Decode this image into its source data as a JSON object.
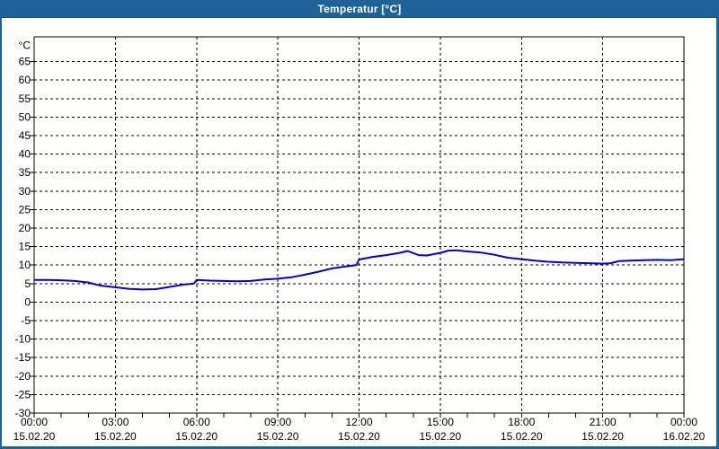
{
  "window": {
    "title": "Temperatur [°C]",
    "colors": {
      "titlebar": "#1f6396",
      "frame": "#1f6396",
      "background": "#fffffb",
      "grid": "#000000",
      "axis": "#000000",
      "line": "#0000cc",
      "title_text": "#ffffff",
      "label_text": "#000000"
    }
  },
  "chart_data": {
    "type": "line",
    "title": "Temperatur [°C]",
    "ylabel": "°C",
    "xlabel": "",
    "legend": "none",
    "grid": "dashed",
    "xlim_hours": [
      0,
      24
    ],
    "ylim": [
      -30,
      71.7
    ],
    "y_ticks": [
      65,
      60,
      55,
      50,
      45,
      40,
      35,
      30,
      25,
      20,
      15,
      10,
      5,
      0,
      -5,
      -10,
      -15,
      -20,
      -25,
      -30
    ],
    "x_grid_hours": [
      3,
      6,
      9,
      12,
      15,
      18,
      21
    ],
    "x_minor_tick_every_hours": 1,
    "x_major_ticks": [
      {
        "hour": 0,
        "time": "00:00",
        "date": "15.02.20"
      },
      {
        "hour": 3,
        "time": "03:00",
        "date": "15.02.20"
      },
      {
        "hour": 6,
        "time": "06:00",
        "date": "15.02.20"
      },
      {
        "hour": 9,
        "time": "09:00",
        "date": "15.02.20"
      },
      {
        "hour": 12,
        "time": "12:00",
        "date": "15.02.20"
      },
      {
        "hour": 15,
        "time": "15:00",
        "date": "15.02.20"
      },
      {
        "hour": 18,
        "time": "18:00",
        "date": "15.02.20"
      },
      {
        "hour": 21,
        "time": "21:00",
        "date": "15.02.20"
      },
      {
        "hour": 24,
        "time": "00:00",
        "date": "16.02.20"
      }
    ],
    "series": [
      {
        "name": "Temperatur",
        "unit": "°C",
        "x": [
          0,
          0.5,
          1,
          1.5,
          2,
          2.25,
          2.5,
          3,
          3.5,
          4,
          4.5,
          5,
          5.5,
          5.9,
          6,
          6.5,
          7,
          7.5,
          8,
          8.5,
          9,
          9.5,
          10,
          10.5,
          11,
          11.5,
          11.9,
          12,
          12.5,
          13,
          13.5,
          13.8,
          14.2,
          14.5,
          15,
          15.3,
          15.6,
          16,
          16.5,
          17,
          17.5,
          18,
          18.5,
          19,
          19.5,
          20,
          20.5,
          21,
          21.3,
          21.6,
          22,
          22.5,
          23,
          23.5,
          24
        ],
        "values": [
          6.0,
          6.0,
          5.9,
          5.7,
          5.3,
          4.8,
          4.4,
          4.0,
          3.6,
          3.4,
          3.5,
          4.1,
          4.7,
          5.0,
          6.0,
          5.8,
          5.7,
          5.6,
          5.7,
          6.1,
          6.3,
          6.7,
          7.4,
          8.2,
          9.1,
          9.6,
          10.0,
          11.5,
          12.2,
          12.7,
          13.3,
          13.8,
          12.7,
          12.6,
          13.3,
          13.9,
          14.0,
          13.7,
          13.4,
          12.8,
          12.0,
          11.6,
          11.2,
          10.9,
          10.7,
          10.6,
          10.5,
          10.4,
          10.5,
          11.1,
          11.2,
          11.3,
          11.4,
          11.3,
          11.6
        ]
      }
    ]
  }
}
